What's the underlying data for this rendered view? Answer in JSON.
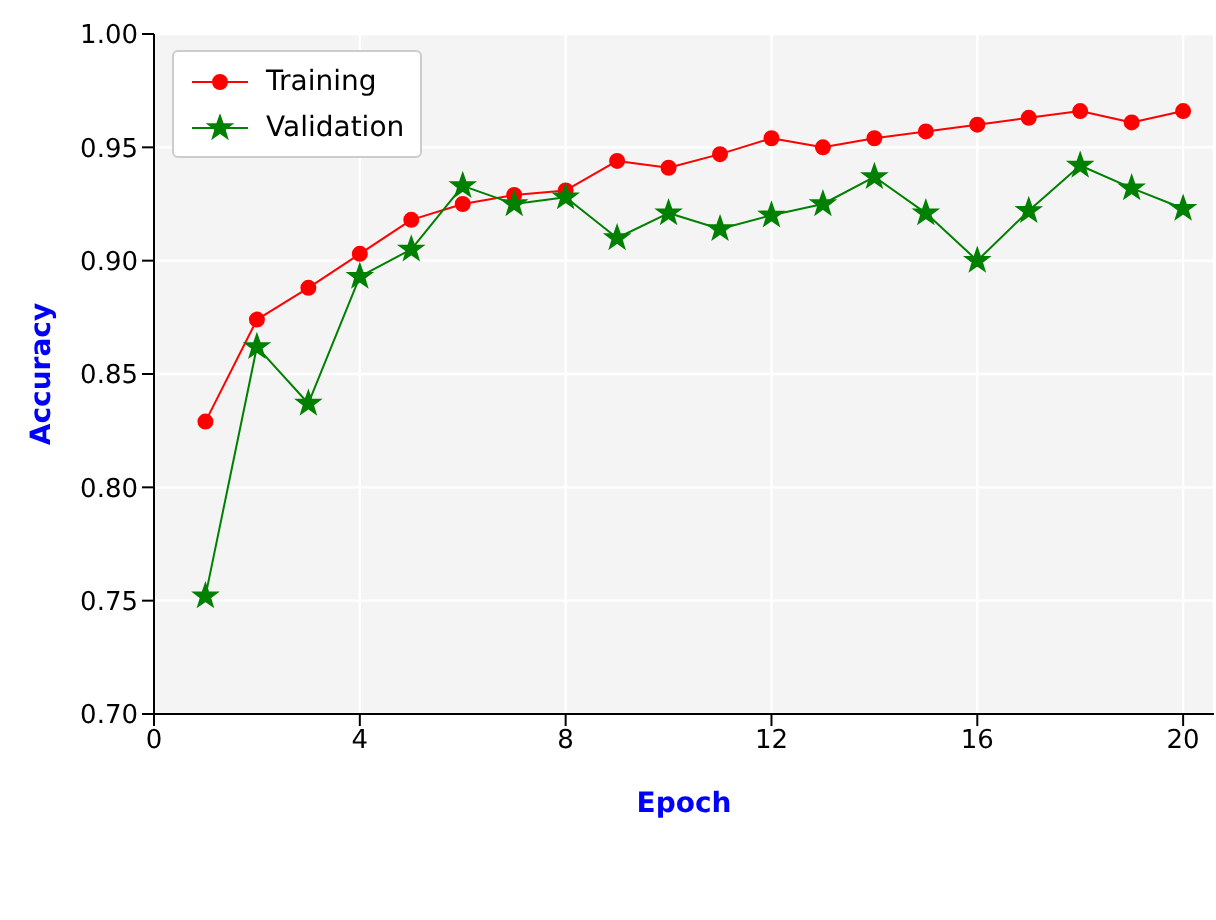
{
  "chart_data": {
    "type": "line",
    "xlabel": "Epoch",
    "ylabel": "Accuracy",
    "x": [
      1,
      2,
      3,
      4,
      5,
      6,
      7,
      8,
      9,
      10,
      11,
      12,
      13,
      14,
      15,
      16,
      17,
      18,
      19,
      20
    ],
    "series": [
      {
        "name": "Training",
        "color": "#ff0000",
        "marker": "circle",
        "values": [
          0.829,
          0.874,
          0.888,
          0.903,
          0.918,
          0.925,
          0.929,
          0.931,
          0.944,
          0.941,
          0.947,
          0.954,
          0.95,
          0.954,
          0.957,
          0.96,
          0.963,
          0.966,
          0.961,
          0.966
        ]
      },
      {
        "name": "Validation",
        "color": "#008000",
        "marker": "star",
        "values": [
          0.752,
          0.862,
          0.837,
          0.893,
          0.905,
          0.933,
          0.925,
          0.928,
          0.91,
          0.921,
          0.914,
          0.92,
          0.925,
          0.937,
          0.921,
          0.9,
          0.922,
          0.942,
          0.932,
          0.923
        ]
      }
    ],
    "xlim": [
      0,
      20.6
    ],
    "xticks": [
      0,
      4,
      8,
      12,
      16,
      20
    ],
    "ylim": [
      0.7,
      1.0
    ],
    "yticks": [
      {
        "value": 0.7,
        "label": "0.70"
      },
      0.75,
      {
        "value": 0.8,
        "label": "0.80"
      },
      0.85,
      {
        "value": 0.9,
        "label": "0.90"
      },
      0.95,
      {
        "value": 1.0,
        "label": "1.00"
      }
    ],
    "grid": true,
    "legend": "top left",
    "line_style": "solid"
  }
}
